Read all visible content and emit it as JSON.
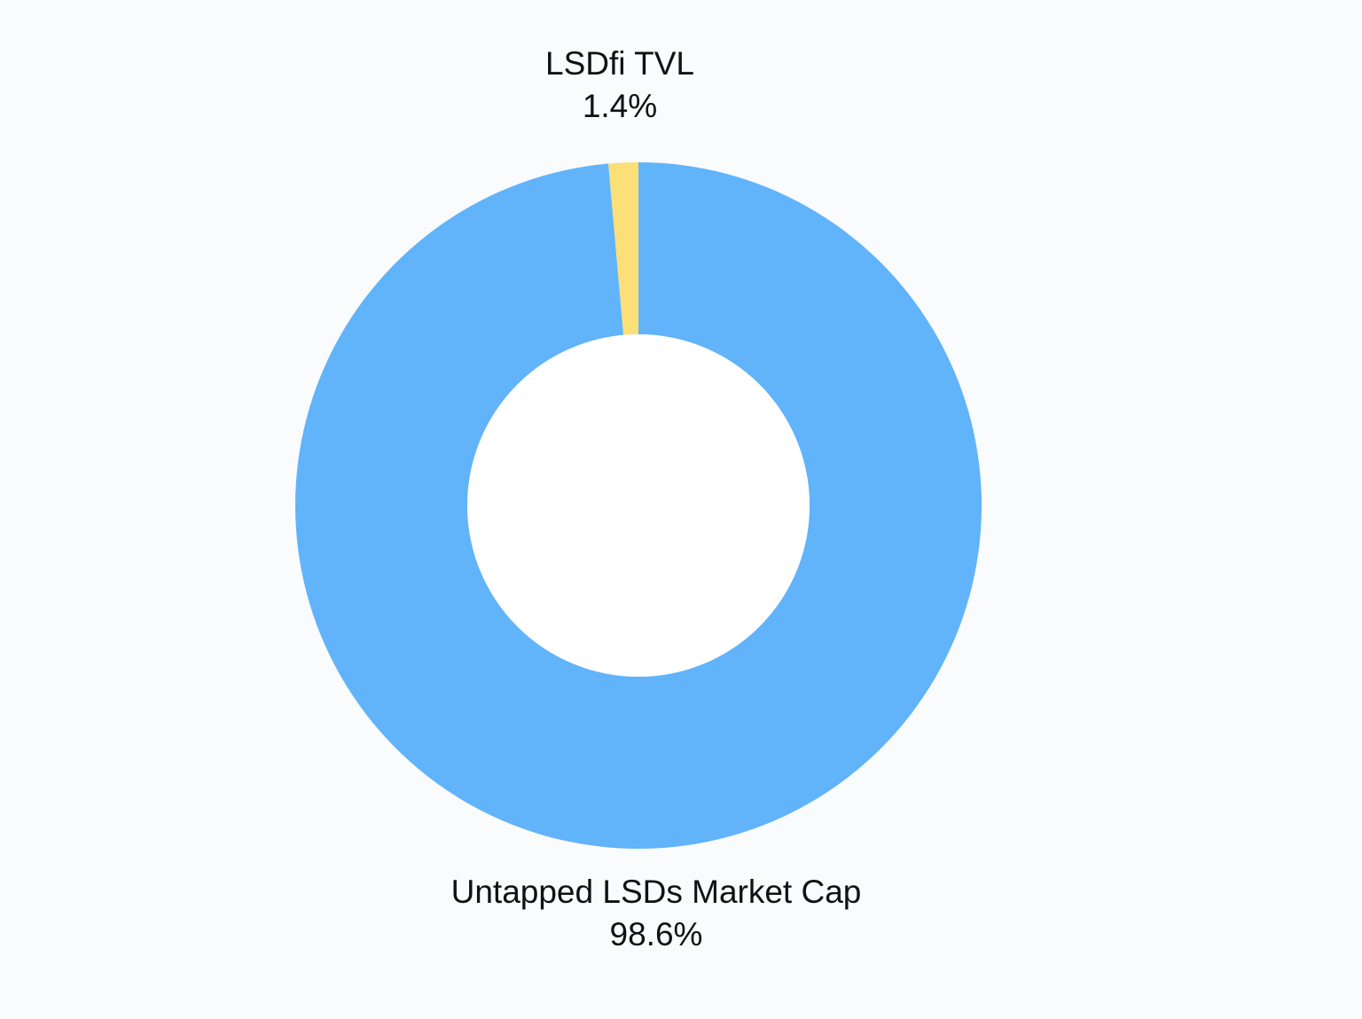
{
  "chart_data": {
    "type": "pie",
    "variant": "donut",
    "title": "",
    "series": [
      {
        "name": "LSDfi TVL",
        "value": 1.4,
        "value_label": "1.4%",
        "color": "#fbdf77"
      },
      {
        "name": "Untapped LSDs Market Cap",
        "value": 98.6,
        "value_label": "98.6%",
        "color": "#61b3fa"
      }
    ],
    "legend": "none",
    "start_angle": "12 o'clock",
    "direction": "counterclockwise",
    "background_color": "#f9fbfc",
    "hole_color": "#ffffff"
  }
}
